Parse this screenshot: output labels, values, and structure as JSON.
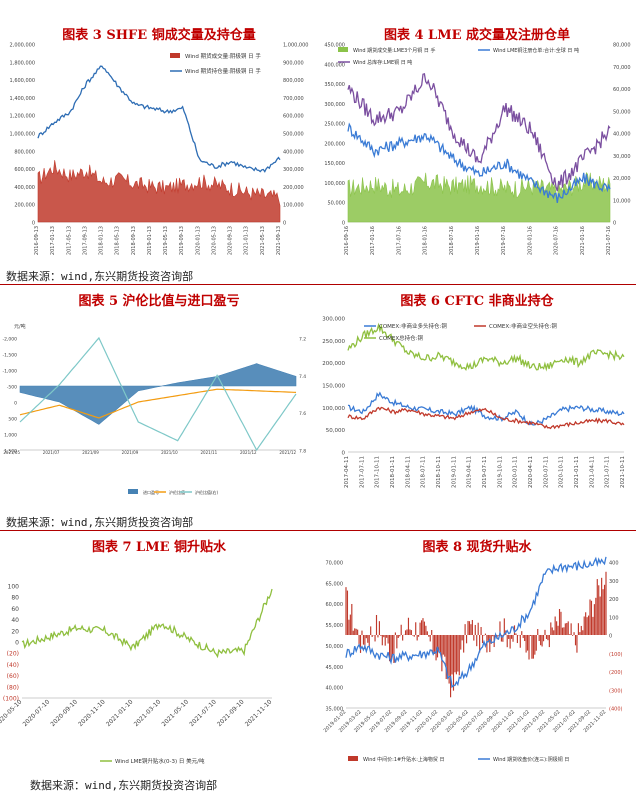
{
  "source_note": "数据来源：wind,东兴期货投资咨询部",
  "chart_data": [
    {
      "id": "fig3",
      "type": "area",
      "title": "图表 3 SHFE 铜成交量及持仓量",
      "x": [
        "2016-09-13",
        "2017-01-13",
        "2017-05-13",
        "2017-09-13",
        "2018-01-13",
        "2018-05-13",
        "2018-09-13",
        "2019-01-13",
        "2019-05-13",
        "2019-09-13",
        "2020-01-13",
        "2020-05-13",
        "2020-09-13",
        "2021-01-13",
        "2021-05-13",
        "2021-09-13"
      ],
      "ylim_left": [
        0,
        2000000
      ],
      "ylim_right": [
        0,
        1000000
      ],
      "yticks_left": [
        "0",
        "200,000",
        "400,000",
        "600,000",
        "800,000",
        "1,000,000",
        "1,200,000",
        "1,400,000",
        "1,600,000",
        "1,800,000",
        "2,000,000"
      ],
      "yticks_right": [
        "0",
        "100,000",
        "200,000",
        "300,000",
        "400,000",
        "500,000",
        "600,000",
        "700,000",
        "800,000",
        "900,000",
        "1,000,000"
      ],
      "series": [
        {
          "name": "Wind 期货成交量:阴极铜 日 手",
          "axis": "left",
          "color": "#c0392b",
          "values": [
            480000,
            620000,
            520000,
            580000,
            450000,
            480000,
            430000,
            400000,
            380000,
            420000,
            460000,
            420000,
            380000,
            330000,
            300000,
            270000
          ]
        },
        {
          "name": "Wind 期货持仓量:阴极铜 日 手",
          "axis": "right",
          "color": "#2e6db4",
          "values": [
            480000,
            560000,
            620000,
            780000,
            880000,
            760000,
            660000,
            640000,
            620000,
            640000,
            350000,
            310000,
            340000,
            300000,
            290000,
            360000
          ]
        }
      ]
    },
    {
      "id": "fig4",
      "type": "line",
      "title": "图表 4 LME 成交量及注册仓单",
      "x": [
        "2016-09-16",
        "2017-01-16",
        "2017-07-16",
        "2018-01-16",
        "2018-07-16",
        "2019-01-16",
        "2019-07-16",
        "2020-01-16",
        "2020-07-16",
        "2021-01-16",
        "2021-07-16"
      ],
      "ylim_left": [
        0,
        450000
      ],
      "ylim_right": [
        0,
        80000
      ],
      "yticks_left": [
        "0",
        "50,000",
        "100,000",
        "150,000",
        "200,000",
        "250,000",
        "300,000",
        "350,000",
        "400,000",
        "450,000"
      ],
      "yticks_right": [
        "0",
        "10,000",
        "20,000",
        "30,000",
        "40,000",
        "50,000",
        "60,000",
        "70,000",
        "80,000"
      ],
      "series": [
        {
          "name": "Wind 期货成交量:LME3个月铜 日 手",
          "axis": "right",
          "color": "#8bc34a",
          "values": [
            15000,
            17000,
            14000,
            18000,
            16000,
            17000,
            15000,
            16000,
            14000,
            18000,
            17000
          ]
        },
        {
          "name": "Wind LME铜注册仓单:合计:全球 日 吨",
          "axis": "left",
          "color": "#3a7bd5",
          "values": [
            240000,
            180000,
            200000,
            220000,
            160000,
            120000,
            150000,
            100000,
            60000,
            110000,
            80000
          ]
        },
        {
          "name": "Wind 总库存:LME铜 日 吨",
          "axis": "left",
          "color": "#7b4fa0",
          "values": [
            340000,
            260000,
            280000,
            370000,
            230000,
            150000,
            290000,
            230000,
            90000,
            160000,
            230000
          ]
        }
      ]
    },
    {
      "id": "fig5",
      "type": "area",
      "title": "图表 5 沪伦比值与进口盈亏",
      "x": [
        "2021/05",
        "2021/07",
        "2021/09",
        "2021/09b",
        "2021/10",
        "2021/11",
        "2021/12",
        "2021/12b"
      ],
      "xticks": [
        "2021/05",
        "2021/07",
        "2021/09",
        "2021/09",
        "2021/10",
        "2021/11",
        "2021/12",
        "2021/12"
      ],
      "ylim_left": [
        -2000,
        1500
      ],
      "ylim_right": [
        7.2,
        7.8
      ],
      "yticks_left": [
        "1,500",
        "1,000",
        "500",
        "0",
        "-500",
        "-1,000",
        "-1,500",
        "-2,000"
      ],
      "yticks_right": [
        "7.8",
        "7.6",
        "7.4",
        "7.2"
      ],
      "ylabel": "元/吨",
      "series": [
        {
          "name": "进口盈亏",
          "axis": "left",
          "color": "#4682b4",
          "values": [
            -200,
            -500,
            -1200,
            -150,
            100,
            300,
            700,
            300
          ]
        },
        {
          "name": "沪伦比值",
          "axis": "left",
          "color": "#f39c12",
          "values": [
            -900,
            -600,
            -1000,
            -500,
            -300,
            -100,
            -150,
            -200
          ]
        },
        {
          "name": "沪伦比值(右)",
          "axis": "right",
          "color": "#7ec8c8",
          "values": [
            7.35,
            7.55,
            7.8,
            7.35,
            7.25,
            7.6,
            7.2,
            7.5
          ]
        }
      ],
      "legend": [
        "进口盈亏",
        "沪伦比值",
        "沪伦比值(右)"
      ]
    },
    {
      "id": "fig6",
      "type": "line",
      "title": "图表 6 CFTC 非商业持仓",
      "x": [
        "2017-04-11",
        "2017-07-11",
        "2017-10-11",
        "2018-01-11",
        "2018-04-11",
        "2018-07-11",
        "2018-10-11",
        "2019-01-11",
        "2019-04-11",
        "2019-07-11",
        "2019-10-11",
        "2020-01-11",
        "2020-04-11",
        "2020-07-11",
        "2020-10-11",
        "2021-01-11",
        "2021-04-11",
        "2021-07-11",
        "2021-10-11"
      ],
      "ylim": [
        0,
        300000
      ],
      "yticks": [
        "0",
        "50,000",
        "100,000",
        "150,000",
        "200,000",
        "250,000",
        "300,000"
      ],
      "series": [
        {
          "name": "COMEX:非商业多头持仓:铜",
          "color": "#3a7bd5",
          "values": [
            100000,
            90000,
            130000,
            110000,
            100000,
            95000,
            90000,
            85000,
            100000,
            80000,
            75000,
            90000,
            60000,
            75000,
            95000,
            100000,
            95000,
            90000,
            85000
          ]
        },
        {
          "name": "COMEX:非商业空头持仓:铜",
          "color": "#c0392b",
          "values": [
            80000,
            75000,
            100000,
            90000,
            95000,
            85000,
            80000,
            75000,
            90000,
            95000,
            75000,
            70000,
            65000,
            55000,
            60000,
            65000,
            70000,
            70000,
            60000
          ]
        },
        {
          "name": "COMEX总持仓:铜",
          "color": "#8fbf3f",
          "values": [
            230000,
            260000,
            280000,
            250000,
            220000,
            210000,
            215000,
            200000,
            190000,
            210000,
            200000,
            210000,
            190000,
            190000,
            210000,
            200000,
            220000,
            220000,
            210000
          ]
        }
      ]
    },
    {
      "id": "fig7",
      "type": "line",
      "title": "图表 7 LME 铜升贴水",
      "x": [
        "2020-05-10",
        "2020-07-10",
        "2020-09-10",
        "2020-11-10",
        "2021-01-10",
        "2021-03-10",
        "2021-05-10",
        "2021-07-10",
        "2021-09-10",
        "2021-11-10"
      ],
      "ylim": [
        -100,
        100
      ],
      "yticks": [
        "100",
        "80",
        "60",
        "40",
        "20",
        "0",
        "(20)",
        "(40)",
        "(60)",
        "(80)",
        "(100)"
      ],
      "series": [
        {
          "name": "Wind LME铜升贴水(0-3) 日 美元/吨",
          "color": "#8fbf3f",
          "values": [
            -5,
            10,
            25,
            20,
            -10,
            35,
            5,
            -20,
            -15,
            95
          ]
        }
      ]
    },
    {
      "id": "fig8",
      "type": "bar",
      "title": "图表 8 现货升贴水",
      "x": [
        "2019-01-02",
        "2019-03-02",
        "2019-05-02",
        "2019-07-02",
        "2019-09-02",
        "2019-11-02",
        "2020-01-02",
        "2020-03-02",
        "2020-05-02",
        "2020-07-02",
        "2020-09-02",
        "2020-11-02",
        "2021-01-02",
        "2021-03-02",
        "2021-05-02",
        "2021-07-02",
        "2021-09-02",
        "2021-11-02"
      ],
      "ylim_left": [
        35000,
        70000
      ],
      "ylim_right": [
        -400,
        400
      ],
      "yticks_left": [
        "35,000",
        "40,000",
        "45,000",
        "50,000",
        "55,000",
        "60,000",
        "65,000",
        "70,000"
      ],
      "yticks_right": [
        "(400)",
        "(300)",
        "(200)",
        "(100)",
        "0",
        "100",
        "200",
        "300",
        "400"
      ],
      "series": [
        {
          "name": "Wind 中间价:1#升贴水:上海物贸 日",
          "axis": "right",
          "color": "#c0392b",
          "values": [
            200,
            -50,
            50,
            -100,
            50,
            30,
            -100,
            -300,
            60,
            -50,
            40,
            -20,
            -60,
            -30,
            80,
            -40,
            150,
            350
          ]
        },
        {
          "name": "Wind 期货收盘价(连三):阴极铜 日",
          "axis": "left",
          "color": "#3a7bd5",
          "values": [
            48000,
            50000,
            48000,
            47000,
            47500,
            48000,
            49000,
            40000,
            44000,
            50000,
            52000,
            54000,
            58000,
            67000,
            69000,
            69000,
            69500,
            70000
          ]
        }
      ]
    }
  ]
}
